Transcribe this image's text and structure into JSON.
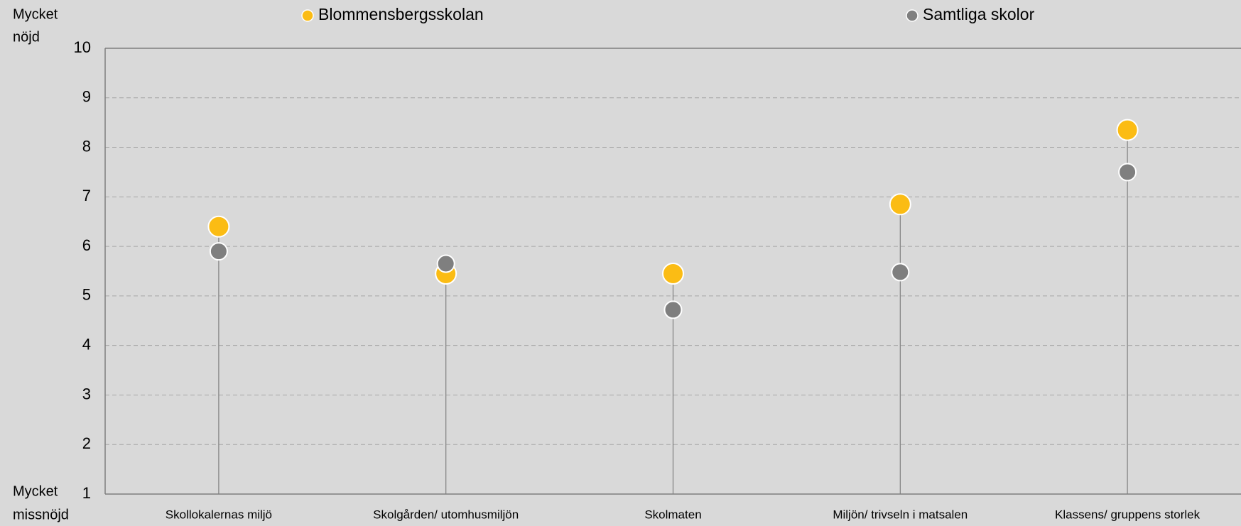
{
  "chart_data": {
    "type": "dot",
    "y_label_top": [
      "Mycket",
      "nöjd"
    ],
    "y_label_bottom": [
      "Mycket",
      "missnöjd"
    ],
    "categories": [
      "Skollokalernas miljö",
      "Skolgården/ utomhusmiljön",
      "Skolmaten",
      "Miljön/ trivseln i matsalen",
      "Klassens/ gruppens storlek"
    ],
    "series": [
      {
        "name": "Blommensbergsskolan",
        "color": "#fbbc14",
        "values": [
          6.4,
          5.45,
          5.45,
          6.85,
          8.35
        ]
      },
      {
        "name": "Samtliga skolor",
        "color": "#7f7f7f",
        "values": [
          5.9,
          5.65,
          4.72,
          5.48,
          7.5
        ]
      }
    ],
    "ylim": [
      1,
      10
    ],
    "yticks": [
      1,
      2,
      3,
      4,
      5,
      6,
      7,
      8,
      9,
      10
    ],
    "grid": true
  }
}
